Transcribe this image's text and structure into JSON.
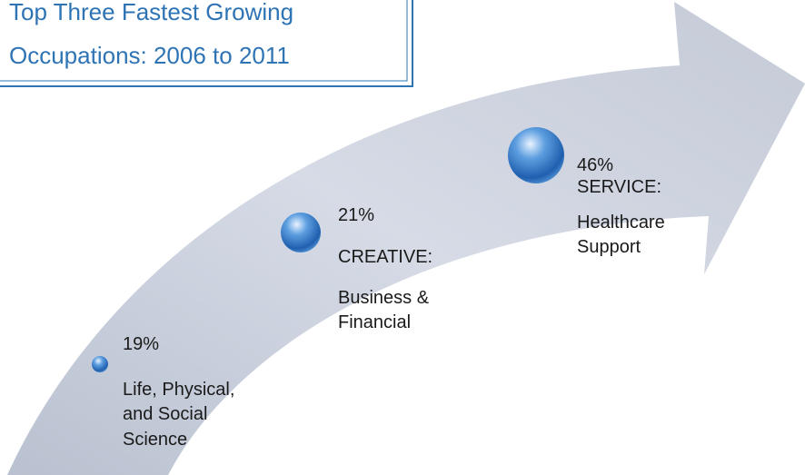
{
  "title": {
    "lines": [
      "Top Three Fastest Growing",
      "Occupations:  2006 to 2011"
    ]
  },
  "items": [
    {
      "percent": "19%",
      "lines": [
        "Life, Physical,",
        "and Social",
        "Science"
      ]
    },
    {
      "percent": "21%",
      "category": "CREATIVE:",
      "lines": [
        "Business &",
        "Financial"
      ]
    },
    {
      "percent": "46%",
      "category": "SERVICE:",
      "lines": [
        "Healthcare",
        "Support"
      ]
    }
  ]
}
